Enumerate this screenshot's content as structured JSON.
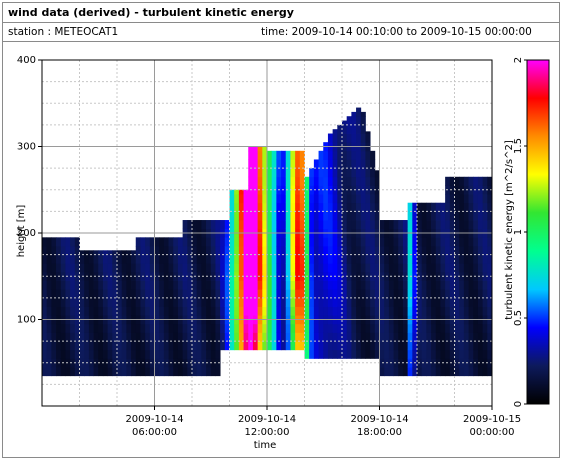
{
  "header": {
    "title": "wind data (derived) - turbulent kinetic energy",
    "station_label": "station : METEOCAT1",
    "time_label": "time: 2009-10-14 00:10:00 to 2009-10-15 00:00:00"
  },
  "chart_data": {
    "type": "heatmap",
    "title": "wind data (derived) - turbulent kinetic energy",
    "xlabel": "time",
    "ylabel": "height [m]",
    "colorbar_label": "turbulent kinetic energy [m^2/s^2]",
    "x_ticks": [
      {
        "hours": 6,
        "label1": "2009-10-14",
        "label2": "06:00:00"
      },
      {
        "hours": 12,
        "label1": "2009-10-14",
        "label2": "12:00:00"
      },
      {
        "hours": 18,
        "label1": "2009-10-14",
        "label2": "18:00:00"
      },
      {
        "hours": 24,
        "label1": "2009-10-15",
        "label2": "00:00:00"
      }
    ],
    "y_ticks": [
      "100",
      "200",
      "300",
      "400"
    ],
    "y_tick_values": [
      100,
      200,
      300,
      400
    ],
    "ylim": [
      0,
      400
    ],
    "color_ticks": [
      "0",
      "0.5",
      "1",
      "1.5",
      "2"
    ],
    "color_tick_values": [
      0,
      0.5,
      1,
      1.5,
      2
    ],
    "color_range": [
      0,
      2
    ],
    "grid": true,
    "colormap": [
      "#000000",
      "#0d1a5c",
      "#0000ff",
      "#00c8ff",
      "#00ff90",
      "#32e632",
      "#ffff00",
      "#ff8c00",
      "#ff0000",
      "#ff00ff"
    ]
  }
}
